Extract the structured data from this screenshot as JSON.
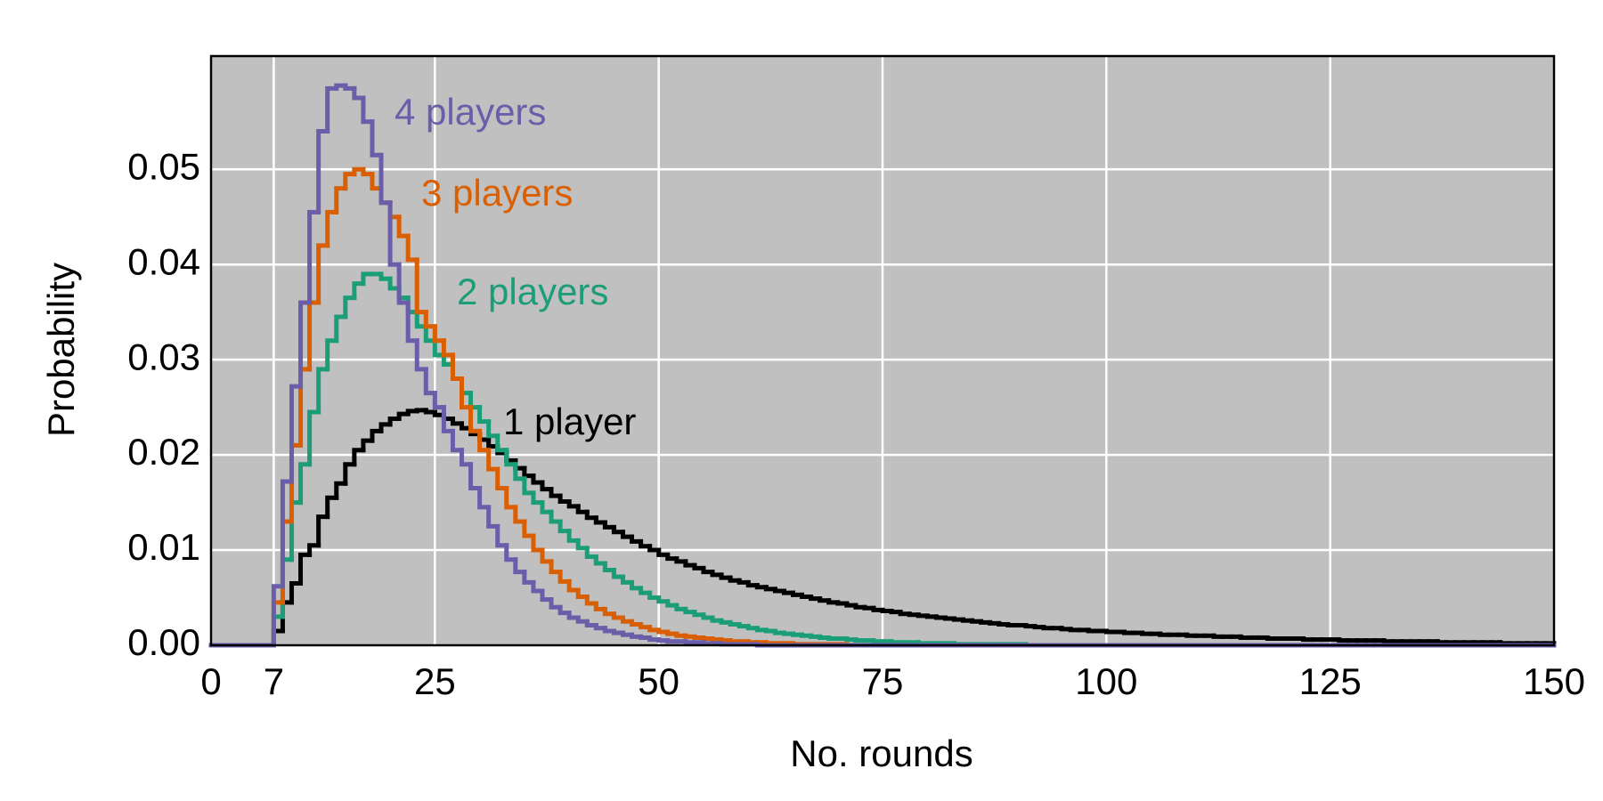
{
  "chart_data": {
    "type": "step",
    "xlabel": "No. rounds",
    "ylabel": "Probability",
    "xlim": [
      0,
      150
    ],
    "ylim": [
      0,
      0.0619
    ],
    "xticks": [
      0,
      7,
      25,
      50,
      75,
      100,
      125,
      150
    ],
    "yticks": [
      {
        "value": 0,
        "label": "0.00"
      },
      0.01,
      0.02,
      0.03,
      0.04,
      0.05
    ],
    "grid": true,
    "background": "#c0c0c0",
    "x": [
      0,
      1,
      2,
      3,
      4,
      5,
      6,
      7,
      8,
      9,
      10,
      11,
      12,
      13,
      14,
      15,
      16,
      17,
      18,
      19,
      20,
      21,
      22,
      23,
      24,
      25,
      26,
      27,
      28,
      29,
      30,
      31,
      32,
      33,
      34,
      35,
      36,
      37,
      38,
      39,
      40,
      41,
      42,
      43,
      44,
      45,
      46,
      47,
      48,
      49,
      50,
      51,
      52,
      53,
      54,
      55,
      56,
      57,
      58,
      59,
      60,
      61,
      62,
      63,
      64,
      65,
      66,
      67,
      68,
      69,
      70,
      71,
      72,
      73,
      74,
      75,
      76,
      77,
      78,
      79,
      80,
      81,
      82,
      83,
      84,
      85,
      86,
      87,
      88,
      89,
      90,
      91,
      92,
      93,
      94,
      95,
      96,
      97,
      98,
      99,
      100,
      101,
      102,
      103,
      104,
      105,
      106,
      107,
      108,
      109,
      110,
      111,
      112,
      113,
      114,
      115,
      116,
      117,
      118,
      119,
      120,
      121,
      122,
      123,
      124,
      125,
      126,
      127,
      128,
      129,
      130,
      131,
      132,
      133,
      134,
      135,
      136,
      137,
      138,
      139,
      140,
      141,
      142,
      143,
      144,
      145,
      146,
      147,
      148,
      149
    ],
    "series": [
      {
        "name": "1 player",
        "color": "#000000",
        "values": [
          0,
          0,
          0,
          0,
          0,
          0,
          0,
          0.0015,
          0.0045,
          0.0065,
          0.0095,
          0.0105,
          0.0135,
          0.0155,
          0.017,
          0.019,
          0.0205,
          0.0215,
          0.0225,
          0.0232,
          0.0238,
          0.0243,
          0.0246,
          0.0247,
          0.0245,
          0.0242,
          0.0238,
          0.0233,
          0.0228,
          0.0222,
          0.0216,
          0.0209,
          0.0202,
          0.0194,
          0.0186,
          0.0178,
          0.0171,
          0.0164,
          0.0157,
          0.0151,
          0.0146,
          0.014,
          0.0134,
          0.0129,
          0.0124,
          0.0119,
          0.0114,
          0.0109,
          0.0104,
          0.01,
          0.0095,
          0.0091,
          0.0088,
          0.0084,
          0.0081,
          0.0077,
          0.0074,
          0.0071,
          0.0068,
          0.0066,
          0.0063,
          0.0061,
          0.0059,
          0.0057,
          0.0055,
          0.0053,
          0.0051,
          0.0049,
          0.0047,
          0.0045,
          0.0044,
          0.0042,
          0.004,
          0.0039,
          0.0037,
          0.0036,
          0.0035,
          0.0033,
          0.0032,
          0.0031,
          0.003,
          0.0029,
          0.0028,
          0.0027,
          0.0026,
          0.0025,
          0.0024,
          0.0023,
          0.0022,
          0.0021,
          0.0021,
          0.002,
          0.0019,
          0.0018,
          0.0018,
          0.0017,
          0.0016,
          0.0016,
          0.0015,
          0.0015,
          0.0014,
          0.0014,
          0.0013,
          0.0013,
          0.0012,
          0.0012,
          0.0011,
          0.0011,
          0.0011,
          0.001,
          0.001,
          0.001,
          0.0009,
          0.0009,
          0.0009,
          0.0008,
          0.0008,
          0.0008,
          0.0007,
          0.0007,
          0.0007,
          0.0007,
          0.0006,
          0.0006,
          0.0006,
          0.0006,
          0.0005,
          0.0005,
          0.0005,
          0.0005,
          0.0005,
          0.0004,
          0.0004,
          0.0004,
          0.0004,
          0.0004,
          0.0004,
          0.0003,
          0.0003,
          0.0003,
          0.0003,
          0.0003,
          0.0003,
          0.0003,
          0.0002,
          0.0002,
          0.0002,
          0.0002,
          0.0002,
          0.0002
        ]
      },
      {
        "name": "2 players",
        "color": "#1b9e77",
        "values": [
          0,
          0,
          0,
          0,
          0,
          0,
          0,
          0.003,
          0.009,
          0.015,
          0.019,
          0.0245,
          0.029,
          0.032,
          0.0345,
          0.0365,
          0.038,
          0.039,
          0.039,
          0.0385,
          0.0375,
          0.0365,
          0.035,
          0.0335,
          0.032,
          0.0305,
          0.0295,
          0.028,
          0.0265,
          0.025,
          0.0235,
          0.022,
          0.0205,
          0.019,
          0.0175,
          0.016,
          0.015,
          0.014,
          0.013,
          0.012,
          0.011,
          0.0102,
          0.0093,
          0.0086,
          0.0079,
          0.0072,
          0.0066,
          0.006,
          0.0055,
          0.005,
          0.0046,
          0.0042,
          0.0038,
          0.0035,
          0.0032,
          0.0029,
          0.0026,
          0.0024,
          0.0022,
          0.002,
          0.0018,
          0.0016,
          0.0015,
          0.0013,
          0.0012,
          0.0011,
          0.001,
          0.0009,
          0.0008,
          0.0007,
          0.0007,
          0.0006,
          0.0005,
          0.0005,
          0.0004,
          0.0004,
          0.0003,
          0.0003,
          0.0003,
          0.0002,
          0.0002,
          0.0002,
          0.0002,
          0.0001,
          0.0001,
          0.0001,
          0.0001,
          0.0001,
          0.0001,
          0.0001,
          0.0001,
          0,
          0,
          0,
          0,
          0,
          0,
          0,
          0,
          0,
          0,
          0,
          0,
          0,
          0,
          0,
          0,
          0,
          0,
          0,
          0,
          0,
          0,
          0,
          0,
          0,
          0,
          0,
          0,
          0,
          0,
          0,
          0,
          0,
          0,
          0,
          0,
          0,
          0,
          0,
          0,
          0,
          0,
          0,
          0,
          0,
          0,
          0,
          0,
          0,
          0,
          0,
          0,
          0,
          0,
          0,
          0,
          0,
          0,
          0
        ]
      },
      {
        "name": "3 players",
        "color": "#d95f02",
        "values": [
          0,
          0,
          0,
          0,
          0,
          0,
          0,
          0.0045,
          0.013,
          0.021,
          0.029,
          0.036,
          0.042,
          0.0455,
          0.048,
          0.0495,
          0.05,
          0.0495,
          0.048,
          0.0465,
          0.045,
          0.043,
          0.0405,
          0.035,
          0.0335,
          0.032,
          0.0305,
          0.028,
          0.025,
          0.0225,
          0.0205,
          0.0185,
          0.0165,
          0.0145,
          0.013,
          0.0115,
          0.01,
          0.0088,
          0.0077,
          0.0067,
          0.0058,
          0.0051,
          0.0044,
          0.0038,
          0.0033,
          0.0029,
          0.0025,
          0.0022,
          0.0019,
          0.0016,
          0.0014,
          0.0012,
          0.001,
          0.0009,
          0.0008,
          0.0007,
          0.0006,
          0.0005,
          0.0004,
          0.0004,
          0.0003,
          0.0003,
          0.0002,
          0.0002,
          0.0002,
          0.0001,
          0.0001,
          0.0001,
          0.0001,
          0.0001,
          0.0001,
          0,
          0,
          0,
          0,
          0,
          0,
          0,
          0,
          0,
          0,
          0,
          0,
          0,
          0,
          0,
          0,
          0,
          0,
          0,
          0,
          0,
          0,
          0,
          0,
          0,
          0,
          0,
          0,
          0,
          0,
          0,
          0,
          0,
          0,
          0,
          0,
          0,
          0,
          0,
          0,
          0,
          0,
          0,
          0,
          0,
          0,
          0,
          0,
          0,
          0,
          0,
          0,
          0,
          0,
          0,
          0,
          0,
          0,
          0,
          0,
          0,
          0,
          0,
          0,
          0,
          0,
          0,
          0,
          0,
          0,
          0,
          0,
          0,
          0,
          0,
          0,
          0,
          0,
          0
        ]
      },
      {
        "name": "4 players",
        "color": "#6a5eab",
        "values": [
          0,
          0,
          0,
          0,
          0,
          0,
          0,
          0.0062,
          0.0172,
          0.0272,
          0.036,
          0.0455,
          0.054,
          0.0585,
          0.0588,
          0.0585,
          0.0575,
          0.055,
          0.0515,
          0.0465,
          0.04,
          0.036,
          0.032,
          0.029,
          0.0265,
          0.025,
          0.0225,
          0.0205,
          0.019,
          0.0165,
          0.0145,
          0.0125,
          0.0105,
          0.009,
          0.0077,
          0.0066,
          0.0057,
          0.0048,
          0.004,
          0.0034,
          0.0029,
          0.0025,
          0.0021,
          0.0018,
          0.0015,
          0.0013,
          0.0011,
          0.0009,
          0.0008,
          0.0006,
          0.0005,
          0.0004,
          0.0004,
          0.0003,
          0.0003,
          0.0002,
          0.0002,
          0.0001,
          0.0001,
          0.0001,
          0.0001,
          0,
          0,
          0,
          0,
          0,
          0,
          0,
          0,
          0,
          0,
          0,
          0,
          0,
          0,
          0,
          0,
          0,
          0,
          0,
          0,
          0,
          0,
          0,
          0,
          0,
          0,
          0,
          0,
          0,
          0,
          0,
          0,
          0,
          0,
          0,
          0,
          0,
          0,
          0,
          0,
          0,
          0,
          0,
          0,
          0,
          0,
          0,
          0,
          0,
          0,
          0,
          0,
          0,
          0,
          0,
          0,
          0,
          0,
          0,
          0,
          0,
          0,
          0,
          0,
          0,
          0,
          0,
          0,
          0,
          0,
          0,
          0,
          0,
          0,
          0,
          0,
          0,
          0,
          0,
          0,
          0,
          0,
          0,
          0,
          0,
          0,
          0,
          0,
          0
        ]
      }
    ]
  }
}
